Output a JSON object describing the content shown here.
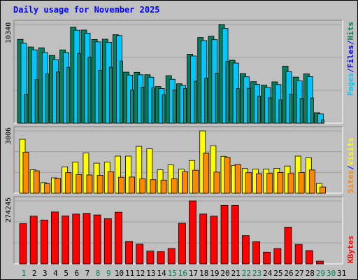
{
  "title": "Daily usage for November 2025",
  "colors": {
    "background": "#c0c0c0",
    "pages": "#138e79",
    "files": "#00c8ff",
    "hits": "#00805c",
    "visits": "#ffff00",
    "sites": "#ff8800",
    "kbytes": "#ff0000",
    "weekend_label": "#00805c",
    "weekday_label": "#000000"
  },
  "chart_data": [
    {
      "type": "bar",
      "name": "hits-files-pages",
      "ymax_label": "10340",
      "legend": [
        "Pages",
        "/",
        "Files",
        "/",
        "Hits"
      ],
      "categories": [
        "1",
        "2",
        "3",
        "4",
        "5",
        "6",
        "7",
        "8",
        "9",
        "10",
        "11",
        "12",
        "13",
        "14",
        "15",
        "16",
        "17",
        "18",
        "19",
        "20",
        "21",
        "22",
        "23",
        "24",
        "25",
        "26",
        "27",
        "28",
        "29",
        "30",
        "31"
      ],
      "series": [
        {
          "name": "Hits",
          "values": [
            8780,
            7990,
            7900,
            7100,
            7680,
            10050,
            9760,
            8770,
            8800,
            9270,
            5350,
            5330,
            5080,
            3840,
            4980,
            4130,
            7230,
            8970,
            9110,
            10340,
            6600,
            5200,
            4350,
            3990,
            4330,
            5980,
            4830,
            5170,
            1100,
            0,
            0
          ]
        },
        {
          "name": "Files",
          "values": [
            8380,
            7690,
            7400,
            6660,
            7400,
            9740,
            9430,
            8520,
            8480,
            9180,
            5040,
            5070,
            4820,
            3630,
            4600,
            3950,
            7040,
            8650,
            8750,
            9930,
            6300,
            4860,
            4060,
            3750,
            4050,
            5410,
            4440,
            4880,
            970,
            0,
            0
          ]
        },
        {
          "name": "Pages",
          "values": [
            3050,
            4560,
            5180,
            5370,
            5860,
            7320,
            6920,
            5530,
            5860,
            6510,
            3470,
            3780,
            3700,
            2990,
            3490,
            3630,
            4400,
            4730,
            5240,
            6470,
            3630,
            3660,
            2840,
            2650,
            2450,
            3020,
            2590,
            2650,
            350,
            0,
            0
          ]
        }
      ]
    },
    {
      "type": "bar",
      "name": "visits-sites",
      "ymax_label": "3006",
      "legend": [
        "Sites",
        "/",
        "Visits"
      ],
      "categories": [
        "1",
        "2",
        "3",
        "4",
        "5",
        "6",
        "7",
        "8",
        "9",
        "10",
        "11",
        "12",
        "13",
        "14",
        "15",
        "16",
        "17",
        "18",
        "19",
        "20",
        "21",
        "22",
        "23",
        "24",
        "25",
        "26",
        "27",
        "28",
        "29",
        "30",
        "31"
      ],
      "series": [
        {
          "name": "Visits",
          "values": [
            2600,
            1130,
            510,
            740,
            1270,
            1500,
            1940,
            1450,
            1500,
            1790,
            1790,
            2260,
            2140,
            1130,
            1370,
            1160,
            1580,
            3006,
            2290,
            1780,
            1340,
            1190,
            1160,
            1160,
            1200,
            1310,
            1790,
            1710,
            470,
            0,
            0
          ]
        },
        {
          "name": "Sites",
          "values": [
            1980,
            1080,
            460,
            710,
            990,
            900,
            880,
            860,
            1040,
            770,
            780,
            690,
            650,
            630,
            700,
            1040,
            1110,
            1930,
            1020,
            1730,
            1390,
            990,
            940,
            960,
            1000,
            950,
            1000,
            1120,
            300,
            0,
            0
          ]
        }
      ]
    },
    {
      "type": "bar",
      "name": "kbytes",
      "ymax_label": "274245",
      "legend": [
        "KBytes"
      ],
      "categories": [
        "1",
        "2",
        "3",
        "4",
        "5",
        "6",
        "7",
        "8",
        "9",
        "10",
        "11",
        "12",
        "13",
        "14",
        "15",
        "16",
        "17",
        "18",
        "19",
        "20",
        "21",
        "22",
        "23",
        "24",
        "25",
        "26",
        "27",
        "28",
        "29",
        "30",
        "31"
      ],
      "series": [
        {
          "name": "KBytes",
          "values": [
            175000,
            208000,
            191000,
            226000,
            209000,
            217000,
            220000,
            213000,
            197000,
            225000,
            98000,
            86000,
            56000,
            53000,
            67000,
            177000,
            274245,
            217000,
            208000,
            255000,
            255000,
            123000,
            97000,
            51000,
            67000,
            160000,
            85000,
            58000,
            12000,
            0,
            0
          ]
        }
      ]
    }
  ],
  "weekend_days": [
    "1",
    "8",
    "9",
    "15",
    "16",
    "22",
    "23",
    "29",
    "30"
  ]
}
